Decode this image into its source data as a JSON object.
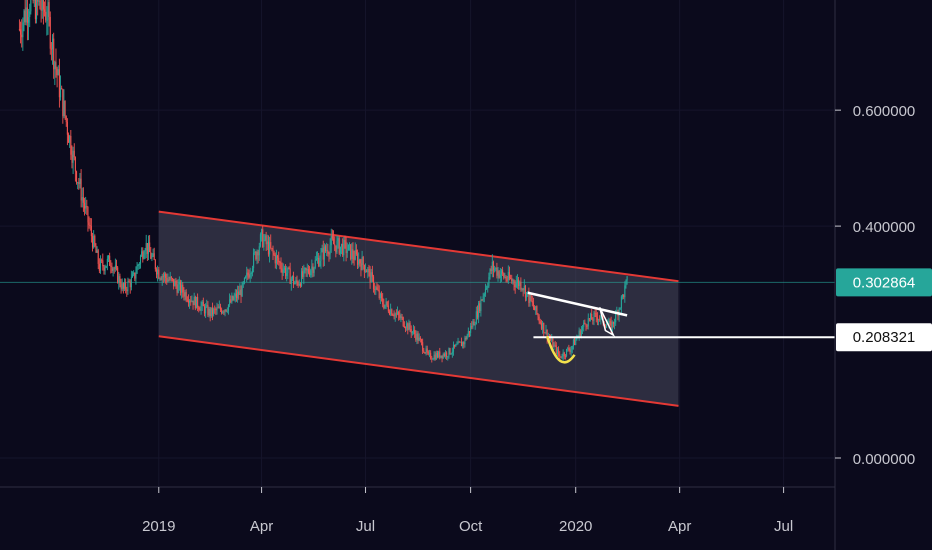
{
  "chart_data": {
    "type": "candlestick",
    "title": "",
    "xlabel": "",
    "ylabel": "",
    "x_ticks": [
      "2019",
      "Apr",
      "Jul",
      "Oct",
      "2020",
      "Apr",
      "Jul"
    ],
    "y_ticks": [
      "0.600000",
      "0.400000",
      "0.000000"
    ],
    "y_tick_values": [
      0.6,
      0.4,
      0.0
    ],
    "ylim": [
      -0.05,
      0.79
    ],
    "xlim": [
      "2018-08-15",
      "2020-08-15"
    ],
    "last_price": {
      "label": "0.302864",
      "value": 0.302864,
      "color": "#26a69a"
    },
    "level_line": {
      "label": "0.208321",
      "value": 0.208321,
      "color": "#ffffff"
    },
    "channel": {
      "color": "#e53935",
      "upper": [
        [
          "2019-01-01",
          0.425
        ],
        [
          "2020-03-31",
          0.305
        ]
      ],
      "lower": [
        [
          "2019-01-01",
          0.21
        ],
        [
          "2020-03-31",
          0.09
        ]
      ]
    },
    "trendline": {
      "color": "#ffffff",
      "points": [
        [
          "2019-11-20",
          0.285
        ],
        [
          "2020-02-15",
          0.246
        ]
      ]
    },
    "rounding_bottom": {
      "color": "#f2e14c",
      "points": [
        [
          "2019-12-07",
          0.21
        ],
        [
          "2019-12-18",
          0.165
        ],
        [
          "2019-12-31",
          0.178
        ]
      ]
    },
    "price_path": [
      [
        "2018-09-01",
        0.74
      ],
      [
        "2018-09-10",
        0.79
      ],
      [
        "2018-09-25",
        0.77
      ],
      [
        "2018-10-05",
        0.65
      ],
      [
        "2018-10-20",
        0.5
      ],
      [
        "2018-11-01",
        0.4
      ],
      [
        "2018-11-10",
        0.33
      ],
      [
        "2018-11-20",
        0.34
      ],
      [
        "2018-12-01",
        0.29
      ],
      [
        "2018-12-10",
        0.31
      ],
      [
        "2018-12-20",
        0.37
      ],
      [
        "2019-01-01",
        0.32
      ],
      [
        "2019-01-15",
        0.3
      ],
      [
        "2019-02-01",
        0.27
      ],
      [
        "2019-02-15",
        0.25
      ],
      [
        "2019-03-01",
        0.26
      ],
      [
        "2019-03-15",
        0.29
      ],
      [
        "2019-04-01",
        0.38
      ],
      [
        "2019-04-15",
        0.34
      ],
      [
        "2019-05-01",
        0.3
      ],
      [
        "2019-05-15",
        0.33
      ],
      [
        "2019-06-01",
        0.37
      ],
      [
        "2019-06-15",
        0.36
      ],
      [
        "2019-07-01",
        0.33
      ],
      [
        "2019-07-15",
        0.27
      ],
      [
        "2019-08-01",
        0.24
      ],
      [
        "2019-08-15",
        0.21
      ],
      [
        "2019-08-25",
        0.175
      ],
      [
        "2019-09-10",
        0.18
      ],
      [
        "2019-09-25",
        0.2
      ],
      [
        "2019-10-05",
        0.24
      ],
      [
        "2019-10-20",
        0.33
      ],
      [
        "2019-11-01",
        0.31
      ],
      [
        "2019-11-15",
        0.3
      ],
      [
        "2019-11-25",
        0.26
      ],
      [
        "2019-12-05",
        0.22
      ],
      [
        "2019-12-18",
        0.175
      ],
      [
        "2019-12-28",
        0.19
      ],
      [
        "2020-01-10",
        0.235
      ],
      [
        "2020-01-20",
        0.245
      ],
      [
        "2020-02-01",
        0.225
      ],
      [
        "2020-02-08",
        0.26
      ],
      [
        "2020-02-15",
        0.303
      ]
    ],
    "colors": {
      "up": "#26a69a",
      "down": "#ef5350",
      "background": "#0b0a1c"
    }
  }
}
